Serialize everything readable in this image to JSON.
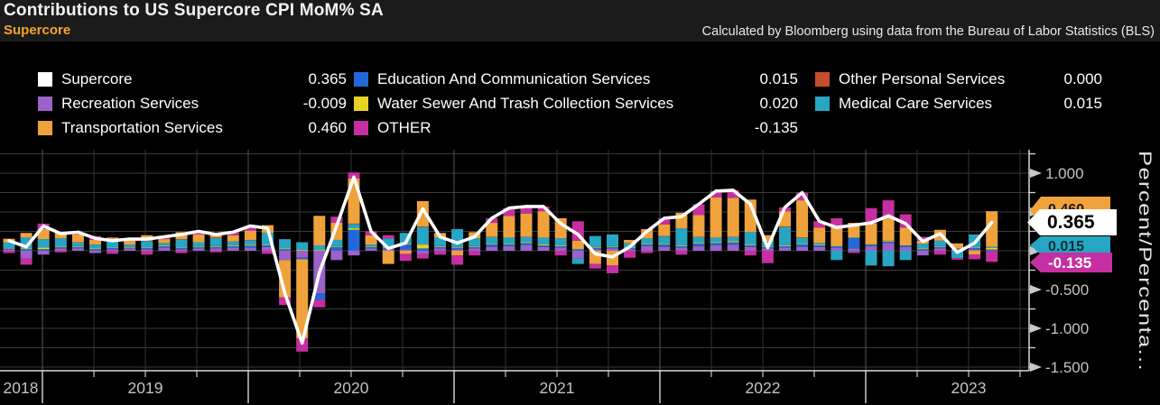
{
  "header": {
    "title": "Contributions to US Supercore CPI MoM% SA",
    "subtitle": "Supercore",
    "source": "Calculated by Bloomberg using data from the Bureau of Labor Statistics (BLS)"
  },
  "legend": {
    "columns": [
      [
        {
          "label": "Supercore",
          "value": "0.365",
          "color": "#ffffff"
        },
        {
          "label": "Recreation Services",
          "value": "-0.009",
          "color": "#9c62c9"
        },
        {
          "label": "Transportation Services",
          "value": "0.460",
          "color": "#efa23c"
        }
      ],
      [
        {
          "label": "Education And Communication Services",
          "value": "0.015",
          "color": "#2268d8"
        },
        {
          "label": "Water Sewer And Trash Collection Services",
          "value": "0.020",
          "color": "#e8d222"
        },
        {
          "label": "OTHER",
          "value": "-0.135",
          "color": "#c62fa1"
        }
      ],
      [
        {
          "label": "Other Personal Services",
          "value": "0.000",
          "color": "#c44f2c"
        },
        {
          "label": "Medical Care Services",
          "value": "0.015",
          "color": "#27a5c3"
        }
      ]
    ]
  },
  "y_axis": {
    "title": "Percent/Percenta...",
    "tick_labels": [
      "1.000",
      "0.500",
      "0.000",
      "-0.500",
      "-1.000",
      "-1.500"
    ]
  },
  "x_axis": {
    "year_labels": [
      "2018",
      "2019",
      "2020",
      "2021",
      "2022",
      "2023"
    ]
  },
  "value_tags": [
    {
      "label": "0.460",
      "color": "#efa23c",
      "text_color": "#1a1a1a"
    },
    {
      "label": "0.015",
      "color": "#27a5c3",
      "text_color": "#073038"
    },
    {
      "label": "0.365",
      "color": "#ffffff",
      "text_color": "#000000"
    },
    {
      "label": "-0.135",
      "color": "#c62fa1",
      "text_color": "#ffffff"
    }
  ],
  "chart_data": {
    "type": "bar",
    "subtype": "stacked-bar-with-line",
    "title": "Contributions to US Supercore CPI MoM% SA",
    "ylabel": "Percent/Percentage points",
    "ylim": [
      -1.7,
      1.3
    ],
    "grid_step": 0.25,
    "labeled_ticks": [
      1.0,
      0.5,
      0.0,
      -0.5,
      -1.0,
      -1.5
    ],
    "legend_position": "top",
    "x": [
      "2018-11",
      "2018-12",
      "2019-01",
      "2019-02",
      "2019-03",
      "2019-04",
      "2019-05",
      "2019-06",
      "2019-07",
      "2019-08",
      "2019-09",
      "2019-10",
      "2019-11",
      "2019-12",
      "2020-01",
      "2020-02",
      "2020-03",
      "2020-04",
      "2020-05",
      "2020-06",
      "2020-07",
      "2020-08",
      "2020-09",
      "2020-10",
      "2020-11",
      "2020-12",
      "2021-01",
      "2021-02",
      "2021-03",
      "2021-04",
      "2021-05",
      "2021-06",
      "2021-07",
      "2021-08",
      "2021-09",
      "2021-10",
      "2021-11",
      "2021-12",
      "2022-01",
      "2022-02",
      "2022-03",
      "2022-04",
      "2022-05",
      "2022-06",
      "2022-07",
      "2022-08",
      "2022-09",
      "2022-10",
      "2022-11",
      "2022-12",
      "2023-01",
      "2023-02",
      "2023-03",
      "2023-04",
      "2023-05",
      "2023-06",
      "2023-07",
      "2023-08"
    ],
    "stack_order": [
      "recreation",
      "education",
      "water",
      "medical",
      "personal",
      "transportation",
      "other"
    ],
    "series": [
      {
        "key": "transportation",
        "name": "Transportation Services",
        "color": "#efa23c",
        "values": [
          0.05,
          0.06,
          0.13,
          0.08,
          0.1,
          0.06,
          0.04,
          0.05,
          0.07,
          0.05,
          0.09,
          0.1,
          0.06,
          0.08,
          0.12,
          0.1,
          -0.48,
          -1.02,
          0.38,
          0.22,
          0.58,
          0.12,
          -0.17,
          -0.04,
          0.33,
          0.06,
          -0.06,
          0.08,
          0.18,
          0.28,
          0.3,
          0.34,
          0.26,
          0.1,
          -0.17,
          -0.19,
          0.04,
          0.12,
          0.15,
          0.2,
          0.28,
          0.52,
          0.5,
          0.42,
          0.08,
          0.2,
          0.48,
          0.2,
          0.25,
          0.18,
          0.26,
          0.3,
          0.22,
          0.04,
          0.14,
          0.06,
          -0.05,
          0.46
        ]
      },
      {
        "key": "recreation",
        "name": "Recreation Services",
        "color": "#9c62c9",
        "values": [
          0.02,
          -0.1,
          -0.05,
          0.03,
          0.03,
          -0.03,
          0.02,
          0.03,
          0.02,
          0.04,
          0.02,
          0.03,
          0.03,
          0.04,
          0.04,
          0.05,
          -0.12,
          -0.09,
          -0.55,
          -0.12,
          -0.06,
          0.03,
          0.02,
          0.02,
          -0.04,
          0.03,
          0.02,
          0.03,
          0.05,
          0.06,
          0.07,
          0.05,
          0.04,
          -0.1,
          0.02,
          0.03,
          0.02,
          0.06,
          0.05,
          0.04,
          0.06,
          0.07,
          0.08,
          0.05,
          0.03,
          0.04,
          0.05,
          0.05,
          0.04,
          0.03,
          0.06,
          0.1,
          0.05,
          -0.06,
          0.03,
          0.02,
          0.02,
          -0.009
        ]
      },
      {
        "key": "education",
        "name": "Education And Communication Services",
        "color": "#2268d8",
        "values": [
          0.01,
          0.02,
          0.02,
          0.015,
          0.02,
          0.02,
          0.015,
          0.01,
          0.015,
          0.02,
          0.015,
          0.02,
          0.02,
          0.02,
          0.025,
          0.02,
          0.02,
          -0.02,
          -0.08,
          0.05,
          0.27,
          0.02,
          0.02,
          0.06,
          0.03,
          0.02,
          0.02,
          0.02,
          0.03,
          0.02,
          0.03,
          0.02,
          0.02,
          0.02,
          0.02,
          0.02,
          0.015,
          0.02,
          0.03,
          0.02,
          0.03,
          0.03,
          0.03,
          0.02,
          0.02,
          0.02,
          0.03,
          0.02,
          0.02,
          0.14,
          0.02,
          0.02,
          0.02,
          0.02,
          0.02,
          0.01,
          0.015,
          0.015
        ]
      },
      {
        "key": "water",
        "name": "Water Sewer And Trash Collection Services",
        "color": "#e8d222",
        "values": [
          0.005,
          0.01,
          0.02,
          0.01,
          0.01,
          0.01,
          0.005,
          0.01,
          0.005,
          0.01,
          0.005,
          0.01,
          0.01,
          0.01,
          0.01,
          0.01,
          0.01,
          0.01,
          0.01,
          0.01,
          0.02,
          0.01,
          0.01,
          0.01,
          0.05,
          0.01,
          0.01,
          0.01,
          0.01,
          0.01,
          0.01,
          0.015,
          0.01,
          0.01,
          0.01,
          0.01,
          0.005,
          0.01,
          0.01,
          0.01,
          0.01,
          0.01,
          0.015,
          0.01,
          0.01,
          0.01,
          0.01,
          0.01,
          0.01,
          0.01,
          0.01,
          0.01,
          0.01,
          0.01,
          0.01,
          0.005,
          0.005,
          0.02
        ]
      },
      {
        "key": "other",
        "name": "OTHER",
        "color": "#c62fa1",
        "values": [
          -0.03,
          -0.08,
          0.07,
          -0.02,
          0.03,
          0.05,
          -0.04,
          0.02,
          -0.05,
          0.03,
          -0.03,
          0.04,
          -0.02,
          0.04,
          0.06,
          -0.04,
          -0.1,
          -0.17,
          -0.1,
          0.08,
          0.08,
          0.05,
          0.04,
          -0.09,
          -0.06,
          -0.05,
          -0.12,
          -0.06,
          0.06,
          0.1,
          0.09,
          0.06,
          -0.06,
          0.25,
          -0.06,
          -0.1,
          -0.09,
          -0.03,
          0.08,
          -0.05,
          0.14,
          0.08,
          0.1,
          -0.06,
          -0.16,
          0.05,
          0.1,
          0.08,
          0.1,
          -0.02,
          0.2,
          0.22,
          0.17,
          0.05,
          -0.05,
          -0.02,
          -0.06,
          -0.135
        ]
      },
      {
        "key": "personal",
        "name": "Other Personal Services",
        "color": "#c44f2c",
        "values": [
          0,
          0,
          0,
          0,
          0.005,
          0,
          0,
          0,
          0.005,
          0,
          0.005,
          0,
          0.005,
          0,
          0.005,
          0,
          0,
          0,
          0,
          0,
          0.005,
          0,
          0,
          0,
          0.005,
          0,
          0,
          0,
          0.005,
          0,
          0.005,
          0,
          0,
          0,
          0,
          0,
          0,
          0,
          0.005,
          0,
          0.005,
          0,
          0.005,
          0,
          0,
          0.005,
          0.005,
          0,
          0,
          0,
          0,
          0,
          0,
          0,
          0,
          0,
          0,
          0
        ]
      },
      {
        "key": "medical",
        "name": "Medical Care Services",
        "color": "#27a5c3",
        "values": [
          0.07,
          0.14,
          0.11,
          0.105,
          0.045,
          0.05,
          0.09,
          0.03,
          0.085,
          0.03,
          0.105,
          0.05,
          0.105,
          0.05,
          0.06,
          0.15,
          0.12,
          0.1,
          0.06,
          0.08,
          0.055,
          0.02,
          0.11,
          0.14,
          0.225,
          0.11,
          0.23,
          0.1,
          0.085,
          0.08,
          0.065,
          0.085,
          0.09,
          -0.07,
          0.14,
          0.15,
          0.06,
          0.07,
          0.095,
          0.22,
          0.075,
          0.06,
          0.05,
          0.16,
          0.06,
          0.235,
          0.075,
          0.02,
          -0.12,
          -0.01,
          -0.19,
          -0.2,
          -0.12,
          0.06,
          0.07,
          -0.095,
          0.17,
          0.015
        ]
      }
    ],
    "line": {
      "name": "Supercore",
      "color": "#ffffff",
      "values": [
        0.13,
        0.05,
        0.32,
        0.22,
        0.24,
        0.16,
        0.13,
        0.15,
        0.15,
        0.18,
        0.21,
        0.25,
        0.21,
        0.24,
        0.32,
        0.29,
        -0.55,
        -1.19,
        -0.28,
        0.32,
        0.95,
        0.25,
        0.03,
        0.1,
        0.54,
        0.18,
        0.1,
        0.18,
        0.42,
        0.55,
        0.57,
        0.57,
        0.35,
        0.21,
        -0.04,
        -0.08,
        0.05,
        0.25,
        0.42,
        0.44,
        0.6,
        0.77,
        0.78,
        0.6,
        0.04,
        0.56,
        0.75,
        0.38,
        0.3,
        0.33,
        0.36,
        0.45,
        0.35,
        0.12,
        0.22,
        -0.02,
        0.1,
        0.365
      ]
    }
  }
}
